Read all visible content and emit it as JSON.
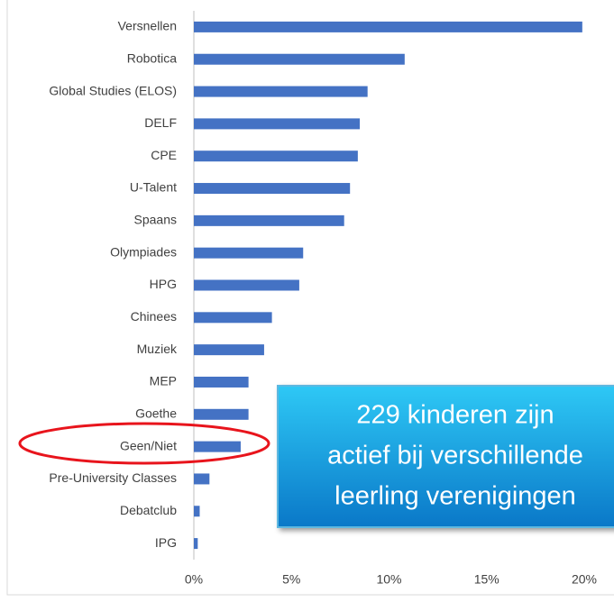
{
  "chart_data": {
    "type": "bar",
    "categories": [
      "Versnellen",
      "Robotica",
      "Global Studies (ELOS)",
      "DELF",
      "CPE",
      "U-Talent",
      "Spaans",
      "Olympiades",
      "HPG",
      "Chinees",
      "Muziek",
      "MEP",
      "Goethe",
      "Geen/Niet",
      "Pre-University Classes",
      "Debatclub",
      "IPG"
    ],
    "values": [
      19.9,
      10.8,
      8.9,
      8.5,
      8.4,
      8.0,
      7.7,
      5.6,
      5.4,
      4.0,
      3.6,
      2.8,
      2.8,
      2.4,
      0.8,
      0.3,
      0.2
    ],
    "color": "#4472c4",
    "xlim": [
      0,
      20
    ],
    "xticks": [
      {
        "value": 0,
        "label": "0%"
      },
      {
        "value": 5,
        "label": "5%"
      },
      {
        "value": 10,
        "label": "10%"
      },
      {
        "value": 15,
        "label": "15%"
      },
      {
        "value": 20,
        "label": "20%"
      }
    ],
    "grid": false,
    "annotation": [
      "229 kinderen zijn",
      "actief bij verschillende",
      "leerling verenigingen"
    ]
  }
}
